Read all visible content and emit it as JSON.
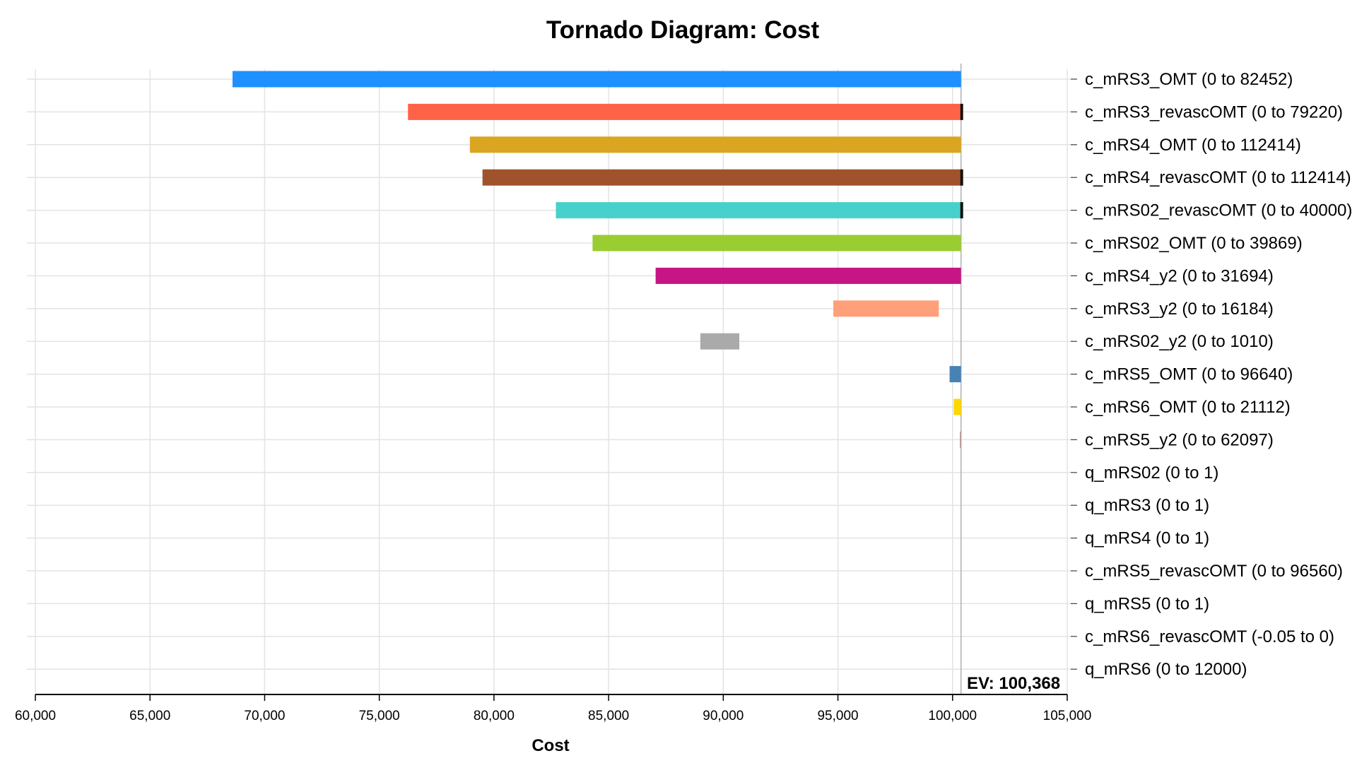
{
  "chart_data": {
    "type": "bar",
    "orientation": "horizontal",
    "title": "Tornado Diagram: Cost",
    "xlabel": "Cost",
    "ylabel": "",
    "xlim": [
      60000,
      105000
    ],
    "xticks": [
      60000,
      65000,
      70000,
      75000,
      80000,
      85000,
      90000,
      95000,
      100000,
      105000
    ],
    "xtick_labels": [
      "60,000",
      "65,000",
      "70,000",
      "75,000",
      "80,000",
      "85,000",
      "90,000",
      "95,000",
      "100,000",
      "105,000"
    ],
    "grid": true,
    "ev_value": 100368,
    "ev_label": "EV: 100,368",
    "categories": [
      "c_mRS3_OMT (0 to 82452)",
      "c_mRS3_revascOMT (0 to 79220)",
      "c_mRS4_OMT (0 to 112414)",
      "c_mRS4_revascOMT (0 to 112414)",
      "c_mRS02_revascOMT (0 to 40000)",
      "c_mRS02_OMT (0 to 39869)",
      "c_mRS4_y2 (0 to 31694)",
      "c_mRS3_y2 (0 to 16184)",
      "c_mRS02_y2 (0 to 1010)",
      "c_mRS5_OMT (0 to 96640)",
      "c_mRS6_OMT (0 to 21112)",
      "c_mRS5_y2 (0 to 62097)",
      "q_mRS02 (0 to 1)",
      "q_mRS3 (0 to 1)",
      "q_mRS4 (0 to 1)",
      "c_mRS5_revascOMT (0 to 96560)",
      "q_mRS5 (0 to 1)",
      "c_mRS6_revascOMT (-0.05 to 0)",
      "q_mRS6 (0 to 12000)"
    ],
    "ranges": [
      [
        68600,
        100368
      ],
      [
        76250,
        100368
      ],
      [
        78950,
        100368
      ],
      [
        79500,
        100368
      ],
      [
        82700,
        100368
      ],
      [
        84300,
        100368
      ],
      [
        87050,
        100368
      ],
      [
        94800,
        99400
      ],
      [
        89000,
        90700
      ],
      [
        99870,
        100368
      ],
      [
        100050,
        100368
      ],
      [
        100320,
        100368
      ],
      [
        100368,
        100368
      ],
      [
        100368,
        100368
      ],
      [
        100368,
        100368
      ],
      [
        100368,
        100368
      ],
      [
        100368,
        100368
      ],
      [
        100368,
        100368
      ],
      [
        100368,
        100368
      ]
    ],
    "colors": [
      "#1e90ff",
      "#ff6347",
      "#daa520",
      "#a0522d",
      "#48d1cc",
      "#9acd32",
      "#c71585",
      "#ffa07a",
      "#aaaaaa",
      "#4682b4",
      "#ffd700",
      "#bc8f8f",
      "#cccccc",
      "#cccccc",
      "#cccccc",
      "#cccccc",
      "#cccccc",
      "#cccccc",
      "#cccccc"
    ],
    "end_markers": [
      false,
      true,
      false,
      true,
      true,
      false,
      false,
      false,
      false,
      false,
      false,
      false,
      false,
      false,
      false,
      false,
      false,
      false,
      false
    ]
  }
}
